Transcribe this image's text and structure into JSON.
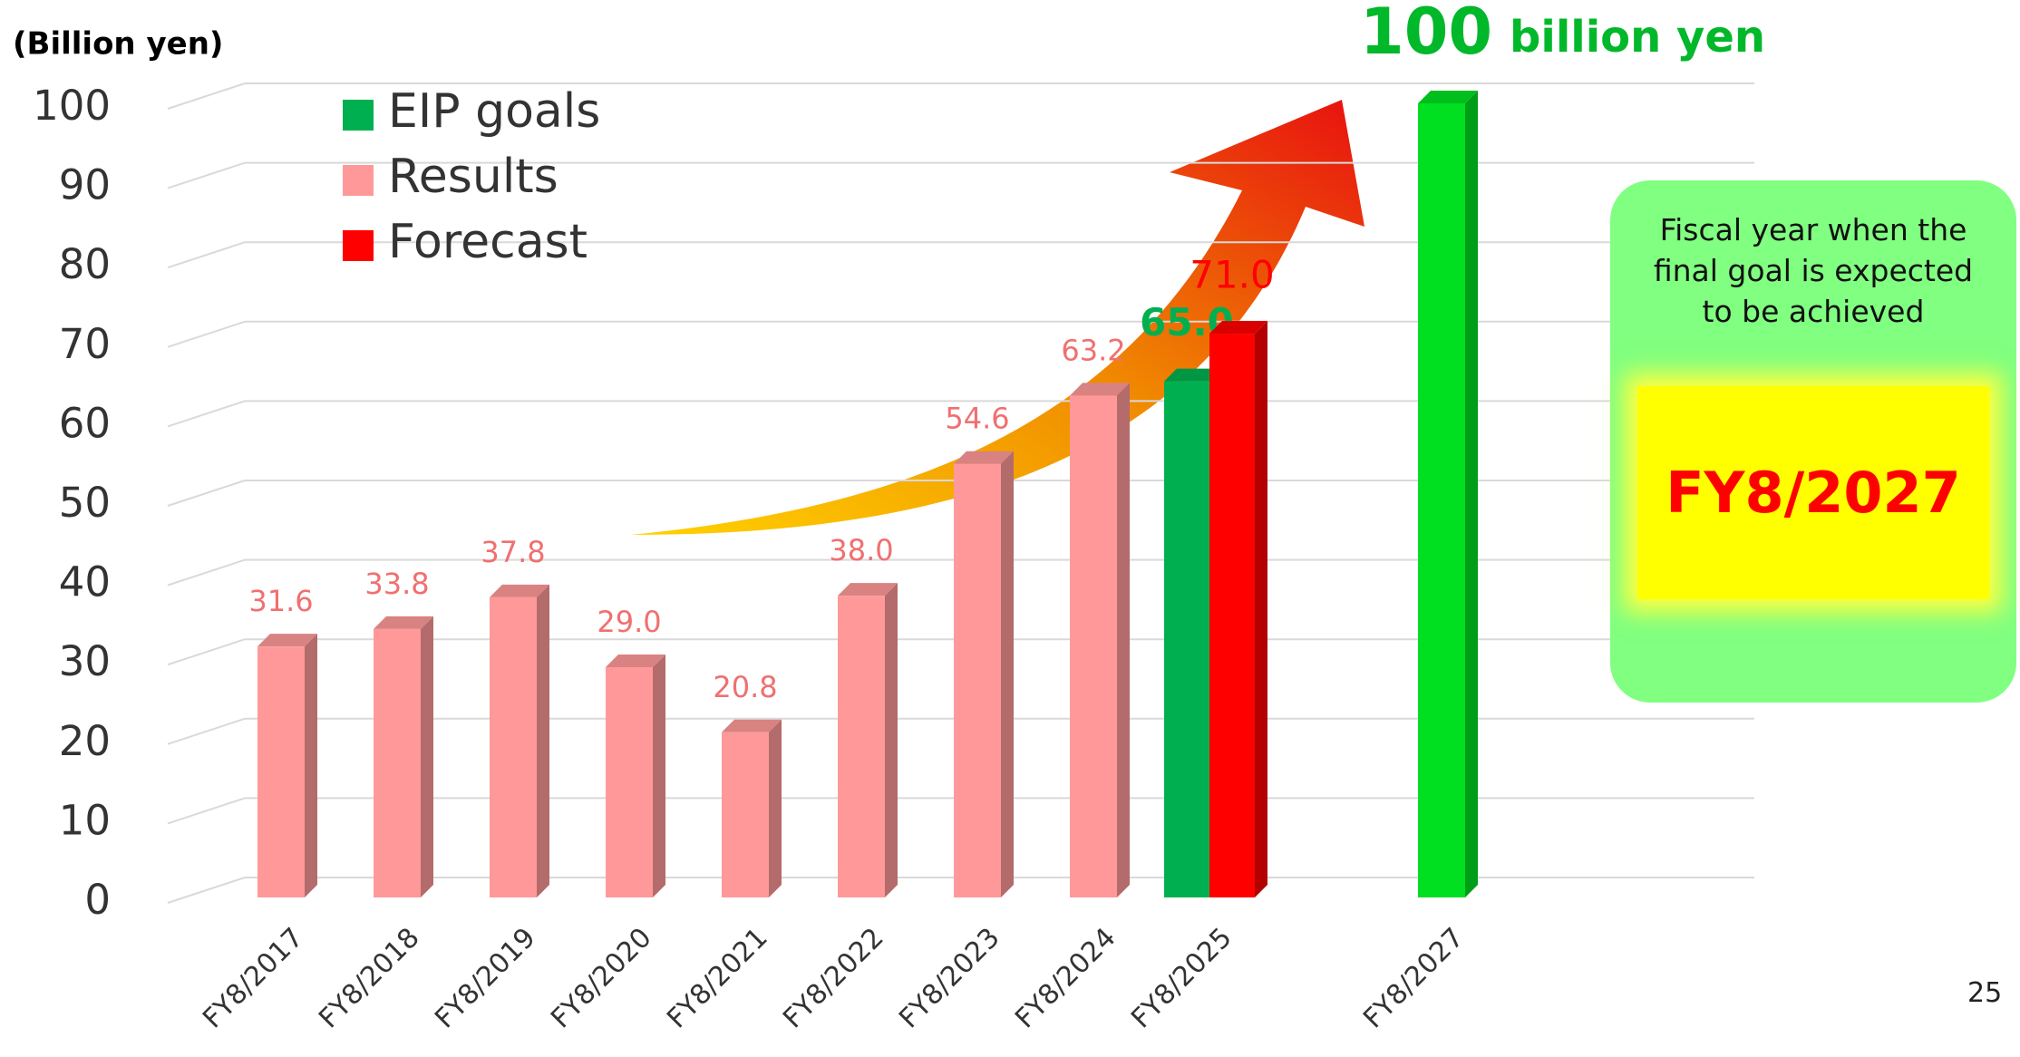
{
  "chart_data": {
    "type": "bar",
    "y_label": "(Billion yen)",
    "headline_suffix": "billion yen",
    "categories": [
      "FY8/2017",
      "FY8/2018",
      "FY8/2019",
      "FY8/2020",
      "FY8/2021",
      "FY8/2022",
      "FY8/2023",
      "FY8/2024",
      "FY8/2025",
      null,
      "FY8/2027"
    ],
    "series": [
      {
        "name": "EIP goals",
        "color": "#00b050",
        "values": [
          null,
          null,
          null,
          null,
          null,
          null,
          null,
          null,
          65.0,
          null,
          100
        ],
        "value_labels": [
          null,
          null,
          null,
          null,
          null,
          null,
          null,
          null,
          "65.0",
          null,
          "100"
        ],
        "colors": [
          null,
          null,
          null,
          null,
          null,
          null,
          null,
          null,
          "#00b050",
          null,
          "#00e020"
        ]
      },
      {
        "name": "Results",
        "color": "#ff9999",
        "values": [
          31.6,
          33.8,
          37.8,
          29.0,
          20.8,
          38.0,
          54.6,
          63.2,
          null,
          null,
          null
        ],
        "value_labels": [
          "31.6",
          "33.8",
          "37.8",
          "29.0",
          "20.8",
          "38.0",
          "54.6",
          "63.2",
          null,
          null,
          null
        ]
      },
      {
        "name": "Forecast",
        "color": "#ff0000",
        "values": [
          null,
          null,
          null,
          null,
          null,
          null,
          null,
          null,
          71.0,
          null,
          null
        ],
        "value_labels": [
          null,
          null,
          null,
          null,
          null,
          null,
          null,
          null,
          "71.0",
          null,
          null
        ]
      }
    ],
    "ylim": [
      0,
      100
    ],
    "yticks": [
      0,
      10,
      20,
      30,
      40,
      50,
      60,
      70,
      80,
      90,
      100
    ],
    "grid": true,
    "callout": {
      "text": "Fiscal year when the final goal is expected to be achieved",
      "highlight": "FY8/2027"
    },
    "page_number": "25"
  }
}
